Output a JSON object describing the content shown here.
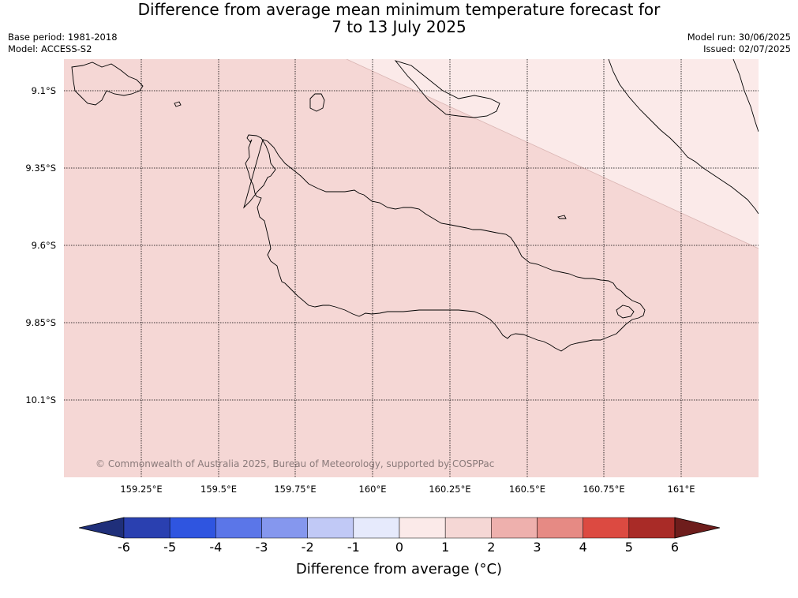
{
  "title": {
    "line1": "Difference from average mean minimum temperature forecast for",
    "line2": "7 to 13 July 2025"
  },
  "meta": {
    "base_period": "Base period: 1981-2018",
    "model": "Model: ACCESS-S2",
    "model_run": "Model run: 30/06/2025",
    "issued": "Issued: 02/07/2025"
  },
  "map": {
    "lat_labels": [
      "9.1°S",
      "9.35°S",
      "9.6°S",
      "9.85°S",
      "10.1°S"
    ],
    "lon_labels": [
      "159.25°E",
      "159.5°E",
      "159.75°E",
      "160°E",
      "160.25°E",
      "160.5°E",
      "160.75°E",
      "161°E"
    ],
    "copyright": "© Commonwealth of Australia 2025, Bureau of Meteorology, supported by COSPPac",
    "fill_colors": {
      "category_1_2": "#f5d7d5",
      "category_0_1": "#fbeae9"
    }
  },
  "legend": {
    "ticks": [
      "-6",
      "-5",
      "-4",
      "-3",
      "-2",
      "-1",
      "0",
      "1",
      "2",
      "3",
      "4",
      "5",
      "6"
    ],
    "label": "Difference from average (°C)",
    "colors": [
      "#1f2f7a",
      "#2a40b0",
      "#2f55e0",
      "#5b76e8",
      "#8597ee",
      "#c1c9f6",
      "#e6eafc",
      "#fbeae9",
      "#f5d7d5",
      "#eeb0ad",
      "#e68a84",
      "#dc4a41",
      "#a92b27",
      "#6e1d1c"
    ]
  }
}
